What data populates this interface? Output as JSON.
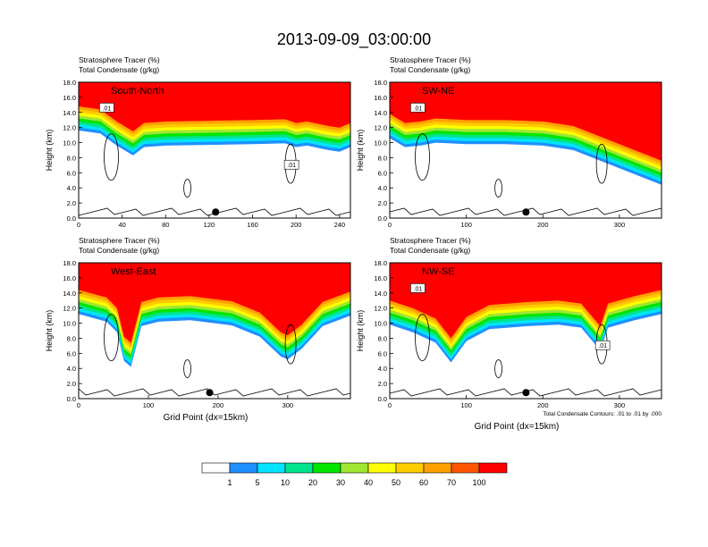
{
  "title": "2013-09-09_03:00:00",
  "chart_data": [
    {
      "type": "heatmap",
      "panel_label": "South-North",
      "subtitle_lines": [
        "Stratosphere Tracer   (%)",
        "Total Condensate   (g/kg)"
      ],
      "xlabel": "",
      "ylabel": "Height (km)",
      "xlim": [
        0,
        250
      ],
      "ylim": [
        0,
        18
      ],
      "x_ticks": [
        "0",
        "40",
        "80",
        "120",
        "160",
        "200",
        "240"
      ],
      "y_ticks": [
        "0.0",
        "2.0",
        "4.0",
        "6.0",
        "8.0",
        "10.0",
        "12.0",
        "14.0",
        "16.0",
        "18.0"
      ],
      "contour_labels": [
        ".01",
        ".01"
      ],
      "tropopause_base_km": [
        [
          0,
          14.8
        ],
        [
          20,
          14.4
        ],
        [
          35,
          12.8
        ],
        [
          50,
          11.5
        ],
        [
          60,
          12.6
        ],
        [
          80,
          12.8
        ],
        [
          120,
          12.9
        ],
        [
          160,
          13.0
        ],
        [
          190,
          13.1
        ],
        [
          200,
          12.6
        ],
        [
          210,
          12.8
        ],
        [
          230,
          12.2
        ],
        [
          240,
          12.0
        ],
        [
          250,
          12.6
        ]
      ],
      "marker_x": 126
    },
    {
      "type": "heatmap",
      "panel_label": "SW-NE",
      "subtitle_lines": [
        "Stratosphere Tracer   (%)",
        "Total Condensate   (g/kg)"
      ],
      "xlabel": "",
      "ylabel": "Height (km)",
      "xlim": [
        0,
        355
      ],
      "ylim": [
        0,
        18
      ],
      "x_ticks": [
        "0",
        "100",
        "200",
        "300"
      ],
      "y_ticks": [
        "0.0",
        "2.0",
        "4.0",
        "6.0",
        "8.0",
        "10.0",
        "12.0",
        "14.0",
        "16.0",
        "18.0"
      ],
      "contour_labels": [
        ".01"
      ],
      "tropopause_base_km": [
        [
          0,
          13.8
        ],
        [
          20,
          12.6
        ],
        [
          40,
          12.8
        ],
        [
          60,
          13.2
        ],
        [
          100,
          13.0
        ],
        [
          150,
          13.0
        ],
        [
          200,
          12.8
        ],
        [
          240,
          12.2
        ],
        [
          270,
          11.0
        ],
        [
          300,
          9.8
        ],
        [
          330,
          8.6
        ],
        [
          355,
          7.6
        ]
      ],
      "marker_x": 178
    },
    {
      "type": "heatmap",
      "panel_label": "West-East",
      "subtitle_lines": [
        "Stratosphere Tracer   (%)",
        "Total Condensate   (g/kg)"
      ],
      "xlabel": "Grid Point (dx=15km)",
      "ylabel": "Height (km)",
      "xlim": [
        0,
        390
      ],
      "ylim": [
        0,
        18
      ],
      "x_ticks": [
        "0",
        "100",
        "200",
        "300"
      ],
      "y_ticks": [
        "0.0",
        "2.0",
        "4.0",
        "6.0",
        "8.0",
        "10.0",
        "12.0",
        "14.0",
        "16.0",
        "18.0"
      ],
      "contour_labels": [],
      "tropopause_base_km": [
        [
          0,
          14.4
        ],
        [
          40,
          13.4
        ],
        [
          55,
          12.0
        ],
        [
          65,
          8.2
        ],
        [
          75,
          7.4
        ],
        [
          90,
          12.8
        ],
        [
          115,
          13.4
        ],
        [
          160,
          13.6
        ],
        [
          220,
          12.9
        ],
        [
          260,
          11.4
        ],
        [
          290,
          8.8
        ],
        [
          300,
          8.4
        ],
        [
          320,
          9.8
        ],
        [
          350,
          12.8
        ],
        [
          390,
          14.2
        ]
      ],
      "marker_x": 188
    },
    {
      "type": "heatmap",
      "panel_label": "NW-SE",
      "subtitle_lines": [
        "Stratosphere Tracer   (%)",
        "Total Condensate   (g/kg)"
      ],
      "xlabel": "Grid Point (dx=15km)",
      "ylabel": "Height (km)",
      "xlim": [
        0,
        355
      ],
      "ylim": [
        0,
        18
      ],
      "x_ticks": [
        "0",
        "100",
        "200",
        "300"
      ],
      "y_ticks": [
        "0.0",
        "2.0",
        "4.0",
        "6.0",
        "8.0",
        "10.0",
        "12.0",
        "14.0",
        "16.0",
        "18.0"
      ],
      "contour_labels": [
        ".01",
        ".01"
      ],
      "footnote": "Total Condensate Contours: .01 to .01 by .000",
      "tropopause_base_km": [
        [
          0,
          13.0
        ],
        [
          30,
          12.0
        ],
        [
          60,
          10.6
        ],
        [
          80,
          8.0
        ],
        [
          100,
          10.8
        ],
        [
          130,
          12.4
        ],
        [
          180,
          12.8
        ],
        [
          220,
          13.0
        ],
        [
          250,
          12.6
        ],
        [
          275,
          9.6
        ],
        [
          285,
          12.6
        ],
        [
          320,
          13.6
        ],
        [
          355,
          14.4
        ]
      ],
      "marker_x": 178
    }
  ],
  "colorbar": {
    "labels": [
      "1",
      "5",
      "10",
      "20",
      "30",
      "40",
      "50",
      "60",
      "70",
      "100"
    ],
    "colors": [
      "#ffffff",
      "#1e90ff",
      "#00e5ff",
      "#00e58c",
      "#00e600",
      "#a0e632",
      "#ffff00",
      "#ffcc00",
      "#ffa000",
      "#ff5500",
      "#ff0000"
    ]
  }
}
